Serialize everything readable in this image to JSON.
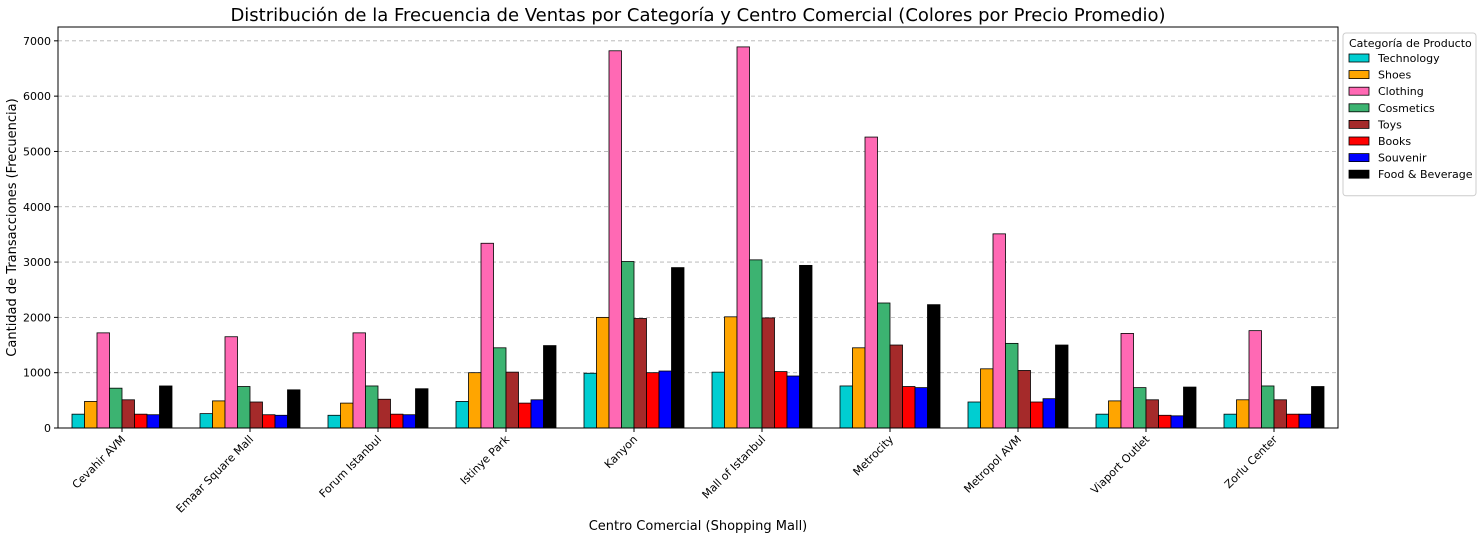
{
  "chart_data": {
    "type": "bar",
    "title": "Distribución de la Frecuencia de Ventas por Categoría y Centro Comercial (Colores por Precio Promedio)",
    "xlabel": "Centro Comercial (Shopping Mall)",
    "ylabel": "Cantidad de Transacciones (Frecuencia)",
    "ylim": [
      0,
      7250
    ],
    "yticks": [
      0,
      1000,
      2000,
      3000,
      4000,
      5000,
      6000,
      7000
    ],
    "grid": "y-dashed",
    "legend_title": "Categoría de Producto",
    "legend_position": "outside-top-right",
    "categories": [
      "Cevahir AVM",
      "Emaar Square Mall",
      "Forum Istanbul",
      "Istinye Park",
      "Kanyon",
      "Mall of Istanbul",
      "Metrocity",
      "Metropol AVM",
      "Viaport Outlet",
      "Zorlu Center"
    ],
    "series": [
      {
        "name": "Technology",
        "color": "#00CED1",
        "values": [
          250,
          260,
          230,
          480,
          990,
          1010,
          760,
          470,
          250,
          250
        ]
      },
      {
        "name": "Shoes",
        "color": "#FFA500",
        "values": [
          480,
          490,
          450,
          1000,
          2000,
          2010,
          1450,
          1070,
          490,
          510
        ]
      },
      {
        "name": "Clothing",
        "color": "#FF69B4",
        "values": [
          1720,
          1650,
          1720,
          3340,
          6820,
          6890,
          5260,
          3510,
          1710,
          1760
        ]
      },
      {
        "name": "Cosmetics",
        "color": "#3CB371",
        "values": [
          720,
          750,
          760,
          1450,
          3010,
          3040,
          2260,
          1530,
          730,
          760
        ]
      },
      {
        "name": "Toys",
        "color": "#A52A2A",
        "values": [
          510,
          470,
          520,
          1010,
          1980,
          1990,
          1500,
          1040,
          510,
          510
        ]
      },
      {
        "name": "Books",
        "color": "#FF0000",
        "values": [
          250,
          240,
          250,
          450,
          1000,
          1020,
          750,
          470,
          230,
          250
        ]
      },
      {
        "name": "Souvenir",
        "color": "#0000FF",
        "values": [
          240,
          230,
          240,
          510,
          1030,
          940,
          730,
          530,
          220,
          250
        ]
      },
      {
        "name": "Food & Beverage",
        "color": "#000000",
        "values": [
          760,
          690,
          710,
          1490,
          2900,
          2940,
          2230,
          1500,
          740,
          750
        ]
      }
    ]
  }
}
